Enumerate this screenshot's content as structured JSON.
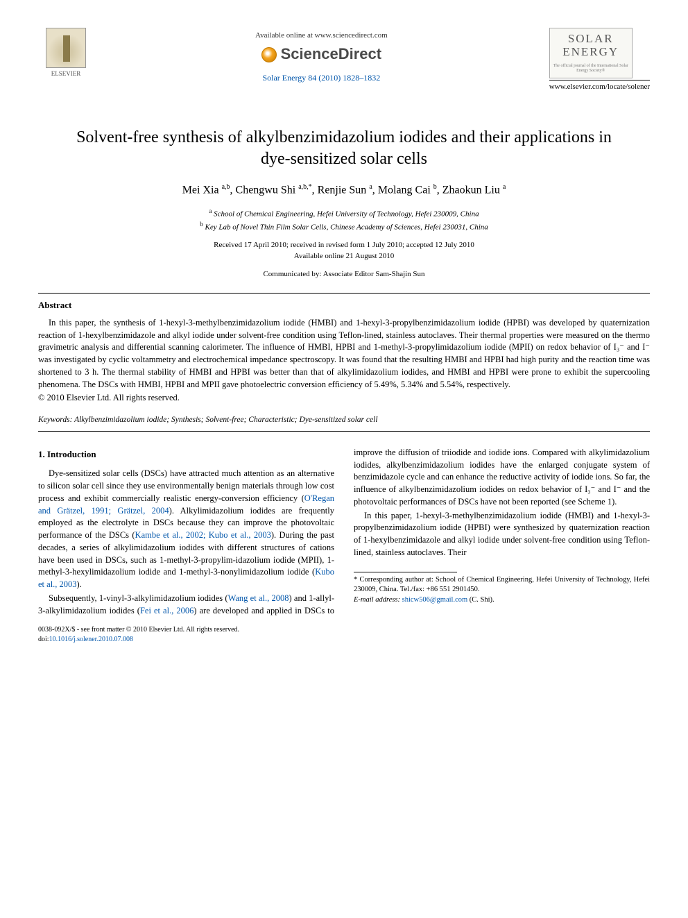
{
  "header": {
    "available_online": "Available online at www.sciencedirect.com",
    "sciencedirect": "ScienceDirect",
    "journal_ref": "Solar Energy 84 (2010) 1828–1832",
    "publisher_name": "ELSEVIER",
    "journal_cover_title_line1": "SOLAR",
    "journal_cover_title_line2": "ENERGY",
    "journal_cover_sub": "The official journal of the International Solar Energy Society®",
    "journal_url": "www.elsevier.com/locate/solener"
  },
  "article": {
    "title": "Solvent-free synthesis of alkylbenzimidazolium iodides and their applications in dye-sensitized solar cells",
    "authors_html": "Mei Xia <sup>a,b</sup>, Chengwu Shi <sup>a,b,*</sup>, Renjie Sun <sup>a</sup>, Molang Cai <sup>b</sup>, Zhaokun Liu <sup>a</sup>",
    "affiliations": {
      "a": "School of Chemical Engineering, Hefei University of Technology, Hefei 230009, China",
      "b": "Key Lab of Novel Thin Film Solar Cells, Chinese Academy of Sciences, Hefei 230031, China"
    },
    "dates_line1": "Received 17 April 2010; received in revised form 1 July 2010; accepted 12 July 2010",
    "dates_line2": "Available online 21 August 2010",
    "communicated": "Communicated by: Associate Editor Sam-Shajin Sun"
  },
  "abstract": {
    "heading": "Abstract",
    "body": "In this paper, the synthesis of 1-hexyl-3-methylbenzimidazolium iodide (HMBI) and 1-hexyl-3-propylbenzimidazolium iodide (HPBI) was developed by quaternization reaction of 1-hexylbenzimidazole and alkyl iodide under solvent-free condition using Teflon-lined, stainless autoclaves. Their thermal properties were measured on the thermo gravimetric analysis and differential scanning calorimeter. The influence of HMBI, HPBI and 1-methyl-3-propylimidazolium iodide (MPII) on redox behavior of I₃⁻ and I⁻ was investigated by cyclic voltammetry and electrochemical impedance spectroscopy. It was found that the resulting HMBI and HPBI had high purity and the reaction time was shortened to 3 h. The thermal stability of HMBI and HPBI was better than that of alkylimidazolium iodides, and HMBI and HPBI were prone to exhibit the supercooling phenomena. The DSCs with HMBI, HPBI and MPII gave photoelectric conversion efficiency of 5.49%, 5.34% and 5.54%, respectively.",
    "copyright": "© 2010 Elsevier Ltd. All rights reserved."
  },
  "keywords": {
    "label": "Keywords:",
    "text": "Alkylbenzimidazolium iodide; Synthesis; Solvent-free; Characteristic; Dye-sensitized solar cell"
  },
  "intro": {
    "heading": "1. Introduction",
    "p1_pre": "Dye-sensitized solar cells (DSCs) have attracted much attention as an alternative to silicon solar cell since they use environmentally benign materials through low cost process and exhibit commercially realistic energy-conversion efficiency (",
    "p1_link1": "O'Regan and Grätzel, 1991; Grätzel, 2004",
    "p1_mid1": "). Alkylimidazolium iodides are frequently employed as the electrolyte in DSCs because they can improve the photovoltaic performance of the DSCs (",
    "p1_link2": "Kambe et al., 2002; Kubo et al., 2003",
    "p1_mid2": "). During the past decades, a series of alkylimidazolium iodides with different structures of cations have been used in DSCs, such as 1-methyl-3-propylim-",
    "p1_col2a": "idazolium iodide (MPII), 1-methyl-3-hexylimidazolium iodide and 1-methyl-3-nonylimidazolium iodide (",
    "p1_link3": "Kubo et al., 2003",
    "p1_col2b": ").",
    "p2_pre": "Subsequently, 1-vinyl-3-alkylimidazolium iodides (",
    "p2_link1": "Wang et al., 2008",
    "p2_mid1": ") and 1-allyl-3-alkylimidazolium iodides (",
    "p2_link2": "Fei et al., 2006",
    "p2_mid2": ") are developed and applied in DSCs to improve the diffusion of triiodide and iodide ions. Compared with alkylimidazolium iodides, alkylbenzimidazolium iodides have the enlarged conjugate system of benzimidazole cycle and can enhance the reductive activity of iodide ions. So far, the influence of alkylbenzimidazolium iodides on redox behavior of I₃⁻ and I⁻ and the photovoltaic performances of DSCs have not been reported (see Scheme 1).",
    "p3": "In this paper, 1-hexyl-3-methylbenzimidazolium iodide (HMBI) and 1-hexyl-3-propylbenzimidazolium iodide (HPBI) were synthesized by quaternization reaction of 1-hexylbenzimidazole and alkyl iodide under solvent-free condition using Teflon-lined, stainless autoclaves. Their"
  },
  "footnote": {
    "corresponding": "* Corresponding author at: School of Chemical Engineering, Hefei University of Technology, Hefei 230009, China. Tel./fax: +86 551 2901450.",
    "email_label": "E-mail address:",
    "email": "shicw506@gmail.com",
    "email_suffix": "(C. Shi)."
  },
  "footer": {
    "issn": "0038-092X/$ - see front matter © 2010 Elsevier Ltd. All rights reserved.",
    "doi_label": "doi:",
    "doi": "10.1016/j.solener.2010.07.008"
  },
  "colors": {
    "link": "#0055aa",
    "text": "#000000",
    "background": "#ffffff"
  }
}
